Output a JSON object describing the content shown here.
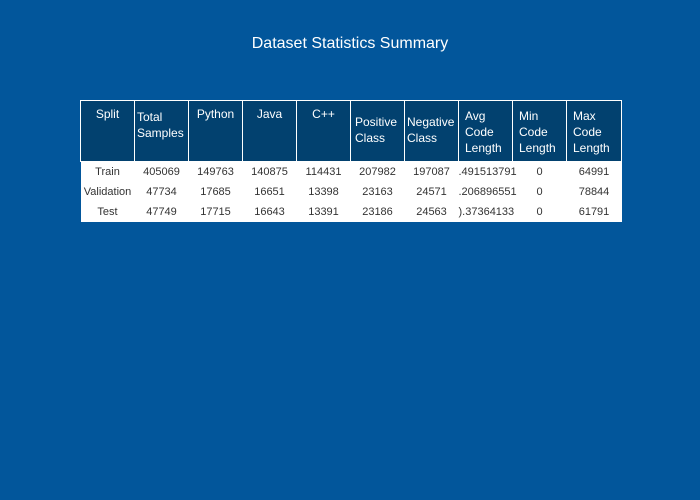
{
  "chart_data": {
    "type": "table",
    "title": "Dataset Statistics Summary",
    "columns": [
      "Split",
      "Total Samples",
      "Python",
      "Java",
      "C++",
      "Positive Class",
      "Negative Class",
      "Avg Code Length",
      "Min Code Length",
      "Max Code Length"
    ],
    "rows": [
      [
        "Train",
        "405069",
        "149763",
        "140875",
        "114431",
        "207982",
        "197087",
        ".491513791",
        "0",
        "64991"
      ],
      [
        "Validation",
        "47734",
        "17685",
        "16651",
        "13398",
        "23163",
        "24571",
        ".206896551",
        "0",
        "78844"
      ],
      [
        "Test",
        "47749",
        "17715",
        "16643",
        "13391",
        "23186",
        "24563",
        ").37364133",
        "0",
        "61791"
      ]
    ],
    "colors": {
      "background": "#02569b",
      "header": "#02416f",
      "cell": "#ffffff"
    }
  }
}
